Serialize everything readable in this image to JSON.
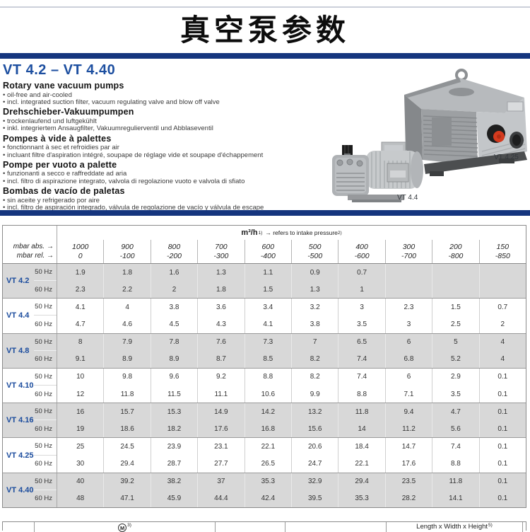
{
  "page": {
    "title": "真空泵参数"
  },
  "colors": {
    "accent_blue": "#15357e",
    "heading_blue": "#1d4fa0",
    "model_blue": "#1a4b9d",
    "band_gray": "#d8d8d8"
  },
  "section": {
    "model_range": "VT 4.2 – VT 4.40",
    "descriptions": [
      {
        "heading": "Rotary vane vacuum pumps",
        "bullets": [
          "oil-free and air-cooled",
          "incl. integrated suction filter, vacuum regulating valve and blow off valve"
        ]
      },
      {
        "heading": "Drehschieber-Vakuumpumpen",
        "bullets": [
          "trockenlaufend und luftgekühlt",
          "inkl. integriertem Ansaugfilter, Vakuumregulierventil und Abblaseventil"
        ]
      },
      {
        "heading": "Pompes à vide à palettes",
        "bullets": [
          "fonctionnant à sec et refroidies par air",
          "incluant filtre d'aspiration intégré, soupape de réglage vide et soupape d'échappement"
        ]
      },
      {
        "heading": "Pompe per vuoto a palette",
        "bullets": [
          "funzionanti a secco e raffreddate ad aria",
          "incl. filtro di aspirazione integrato, valvola di regolazione vuoto e valvola di sfiato"
        ]
      },
      {
        "heading": "Bombas de vacío de paletas",
        "bullets": [
          "sin aceite y refrigerado por aire",
          "incl. filtro de aspiración integrado, válvula de regolazione de vacío y válvula de escape"
        ]
      }
    ],
    "pump_label_large": "VT 4.25",
    "pump_label_small": "VT 4.4"
  },
  "pump_table": {
    "header": {
      "unit": "m³/h",
      "unit_sup": "1)",
      "note": "→ refers to intake pressure",
      "note_sup": "2)"
    },
    "abs_label": "mbar abs. →",
    "rel_label": "mbar rel. →",
    "abs_values": [
      "1000",
      "900",
      "800",
      "700",
      "600",
      "500",
      "400",
      "300",
      "200",
      "150"
    ],
    "rel_values": [
      "0",
      "-100",
      "-200",
      "-300",
      "-400",
      "-500",
      "-600",
      "-700",
      "-800",
      "-850"
    ],
    "groups": [
      {
        "model": "VT 4.2",
        "rows": [
          {
            "hz": "50 Hz",
            "values": [
              "1.9",
              "1.8",
              "1.6",
              "1.3",
              "1.1",
              "0.9",
              "0.7",
              "",
              "",
              ""
            ]
          },
          {
            "hz": "60 Hz",
            "values": [
              "2.3",
              "2.2",
              "2",
              "1.8",
              "1.5",
              "1.3",
              "1",
              "",
              "",
              ""
            ]
          }
        ]
      },
      {
        "model": "VT 4.4",
        "rows": [
          {
            "hz": "50 Hz",
            "values": [
              "4.1",
              "4",
              "3.8",
              "3.6",
              "3.4",
              "3.2",
              "3",
              "2.3",
              "1.5",
              "0.7"
            ]
          },
          {
            "hz": "60 Hz",
            "values": [
              "4.7",
              "4.6",
              "4.5",
              "4.3",
              "4.1",
              "3.8",
              "3.5",
              "3",
              "2.5",
              "2"
            ]
          }
        ]
      },
      {
        "model": "VT 4.8",
        "rows": [
          {
            "hz": "50 Hz",
            "values": [
              "8",
              "7.9",
              "7.8",
              "7.6",
              "7.3",
              "7",
              "6.5",
              "6",
              "5",
              "4"
            ]
          },
          {
            "hz": "60 Hz",
            "values": [
              "9.1",
              "8.9",
              "8.9",
              "8.7",
              "8.5",
              "8.2",
              "7.4",
              "6.8",
              "5.2",
              "4"
            ]
          }
        ]
      },
      {
        "model": "VT 4.10",
        "rows": [
          {
            "hz": "50 Hz",
            "values": [
              "10",
              "9.8",
              "9.6",
              "9.2",
              "8.8",
              "8.2",
              "7.4",
              "6",
              "2.9",
              "0.1"
            ]
          },
          {
            "hz": "60 Hz",
            "values": [
              "12",
              "11.8",
              "11.5",
              "11.1",
              "10.6",
              "9.9",
              "8.8",
              "7.1",
              "3.5",
              "0.1"
            ]
          }
        ]
      },
      {
        "model": "VT 4.16",
        "rows": [
          {
            "hz": "50 Hz",
            "values": [
              "16",
              "15.7",
              "15.3",
              "14.9",
              "14.2",
              "13.2",
              "11.8",
              "9.4",
              "4.7",
              "0.1"
            ]
          },
          {
            "hz": "60 Hz",
            "values": [
              "19",
              "18.6",
              "18.2",
              "17.6",
              "16.8",
              "15.6",
              "14",
              "11.2",
              "5.6",
              "0.1"
            ]
          }
        ]
      },
      {
        "model": "VT 4.25",
        "rows": [
          {
            "hz": "50 Hz",
            "values": [
              "25",
              "24.5",
              "23.9",
              "23.1",
              "22.1",
              "20.6",
              "18.4",
              "14.7",
              "7.4",
              "0.1"
            ]
          },
          {
            "hz": "60 Hz",
            "values": [
              "30",
              "29.4",
              "28.7",
              "27.7",
              "26.5",
              "24.7",
              "22.1",
              "17.6",
              "8.8",
              "0.1"
            ]
          }
        ]
      },
      {
        "model": "VT 4.40",
        "rows": [
          {
            "hz": "50 Hz",
            "values": [
              "40",
              "39.2",
              "38.2",
              "37",
              "35.3",
              "32.9",
              "29.4",
              "23.5",
              "11.8",
              "0.1"
            ]
          },
          {
            "hz": "60 Hz",
            "values": [
              "48",
              "47.1",
              "45.9",
              "44.4",
              "42.4",
              "39.5",
              "35.3",
              "28.2",
              "14.1",
              "0.1"
            ]
          }
        ]
      }
    ]
  },
  "bottom_table": {
    "motor_label": "M",
    "motor_sup": "3)",
    "dims_label": "Length x Width x Height",
    "dims_sup": "5)"
  }
}
